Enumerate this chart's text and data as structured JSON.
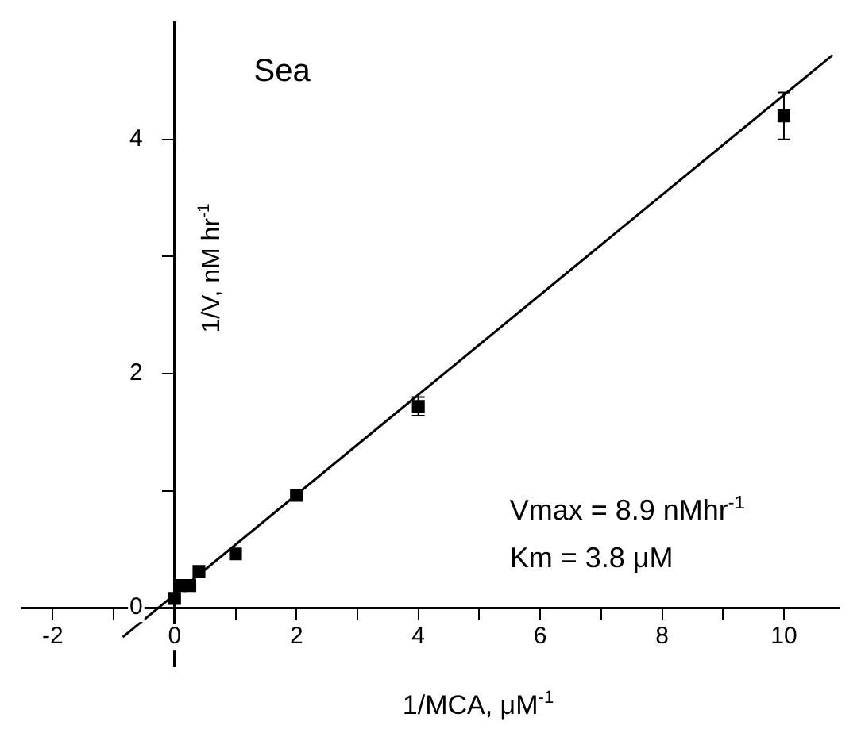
{
  "chart_data": {
    "type": "scatter",
    "xlabel": "1/MCA, μM$^{-1}$",
    "ylabel": "1/V, nM hr$^{-1}$",
    "annotations": [
      "Sea",
      "Vmax = 8.9 nMhr$^{-1}$",
      "Km = 3.8 μM"
    ],
    "series": [
      {
        "color": "#000000",
        "marker": "square",
        "x": [
          0,
          0.1,
          0.25,
          0.4,
          1,
          2,
          4,
          10
        ],
        "values": [
          0.08,
          0.19,
          0.19,
          0.31,
          0.46,
          0.96,
          1.72,
          4.2
        ],
        "errors": [
          null,
          null,
          null,
          null,
          null,
          null,
          0.08,
          0.2
        ]
      },
      {
        "type": "line",
        "color": "#000000",
        "marker": "none",
        "line_style": "solid",
        "x": [
          -0.85,
          10.8
        ],
        "values": [
          -0.25,
          4.72
        ]
      }
    ],
    "xlim": [
      -2.5,
      10.9
    ],
    "ylim": [
      -0.5,
      5
    ],
    "xticks": [
      -2,
      {
        "value": -1,
        "label": null
      },
      0,
      {
        "value": 1,
        "label": null
      },
      2,
      {
        "value": 3,
        "label": null
      },
      4,
      {
        "value": 5,
        "label": null
      },
      6,
      {
        "value": 7,
        "label": null
      },
      8,
      {
        "value": 9,
        "label": null
      },
      10
    ],
    "yticks": [
      0,
      {
        "value": 1,
        "label": null
      },
      2,
      {
        "value": 3,
        "label": null
      },
      4
    ],
    "grid": false,
    "legend": false
  }
}
